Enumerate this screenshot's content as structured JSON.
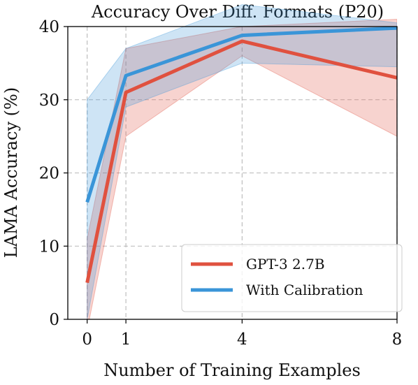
{
  "chart_data": {
    "type": "line",
    "title": "Accuracy Over Diff. Formats (P20)",
    "xlabel": "Number of Training Examples",
    "ylabel": "LAMA Accuracy (%)",
    "x": [
      0,
      1,
      4,
      8
    ],
    "x_ticks": [
      "0",
      "1",
      "4",
      "8"
    ],
    "xlim": [
      -0.5,
      8
    ],
    "y_ticks": [
      "0",
      "10",
      "20",
      "30",
      "40"
    ],
    "ylim": [
      0,
      40
    ],
    "grid": true,
    "legend_position": "bottom-right",
    "series": [
      {
        "name": "GPT-3 2.7B",
        "color": "#e0513f",
        "values": [
          5.0,
          31.0,
          38.0,
          33.0
        ],
        "band_low": [
          -1.5,
          25.0,
          36.0,
          25.0
        ],
        "band_high": [
          11.0,
          37.0,
          40.0,
          41.0
        ]
      },
      {
        "name": "With Calibration",
        "color": "#3a95d8",
        "values": [
          16.0,
          33.3,
          38.8,
          39.8
        ],
        "band_low": [
          0.0,
          29.0,
          35.0,
          34.5
        ],
        "band_high": [
          30.0,
          37.0,
          43.0,
          40.5
        ]
      }
    ]
  }
}
